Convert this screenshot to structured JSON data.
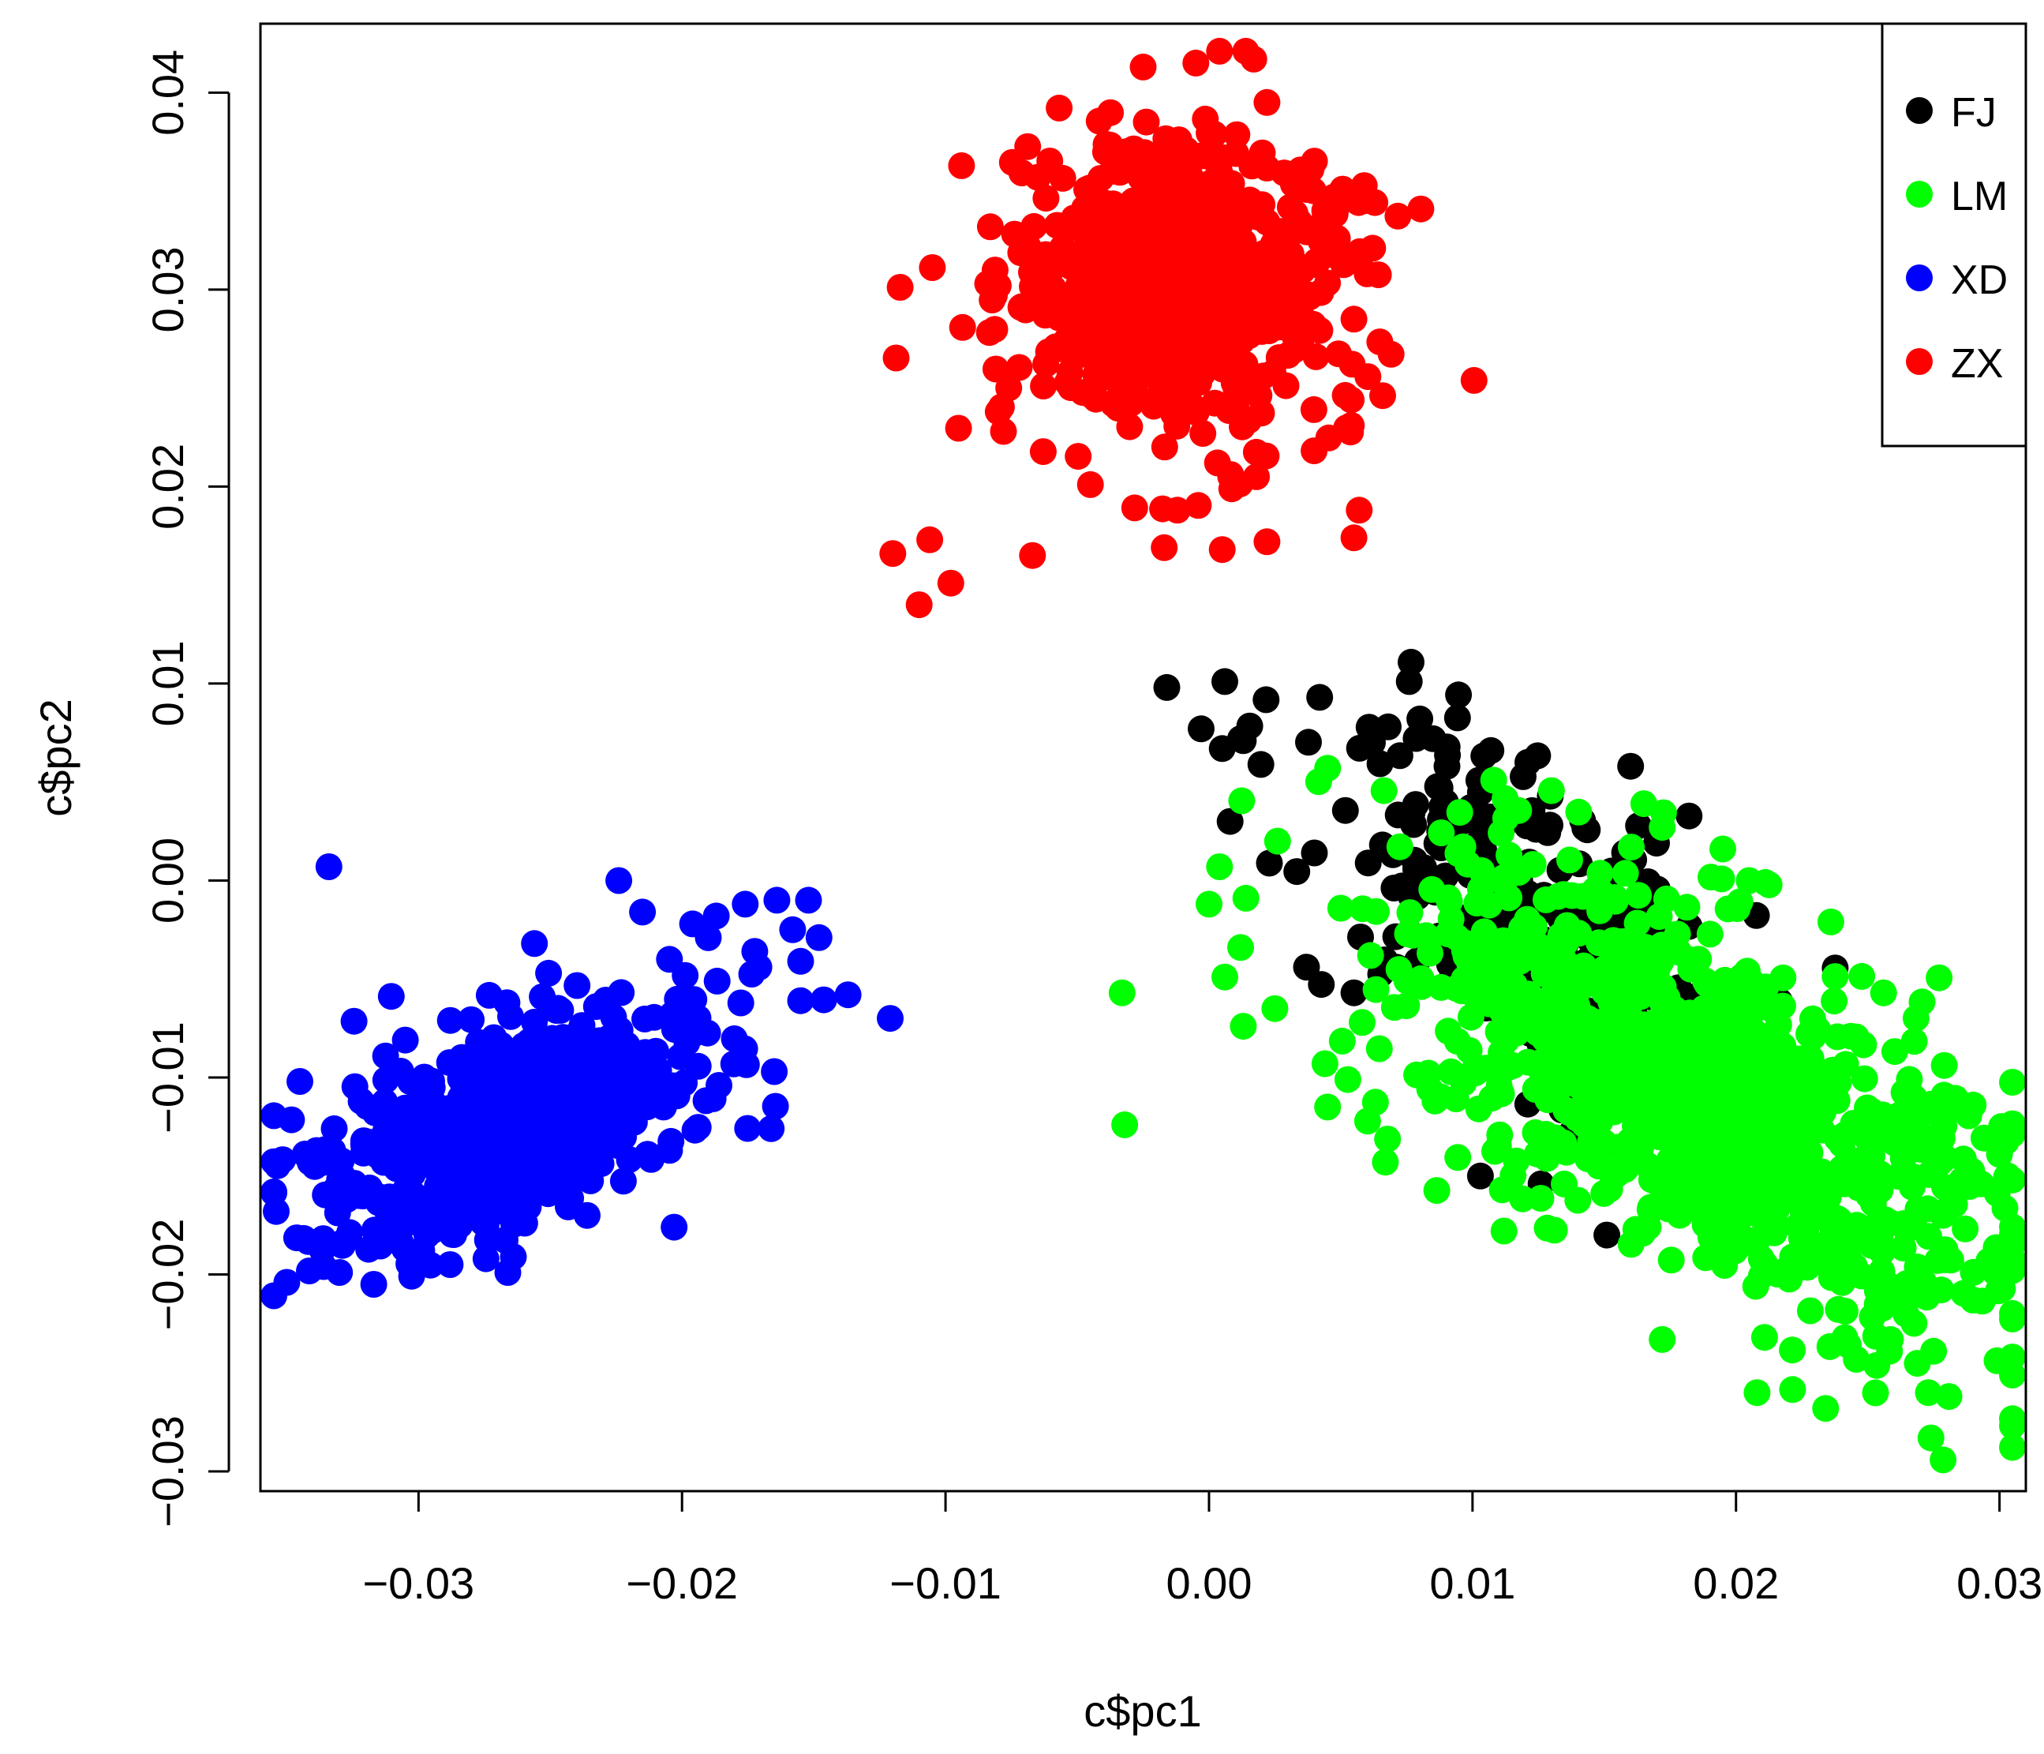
{
  "chart_data": {
    "type": "scatter",
    "title": "",
    "xlabel": "c$pc1",
    "ylabel": "c$pc2",
    "xlim": [
      -0.036,
      0.031
    ],
    "ylim": [
      -0.031,
      0.0435
    ],
    "x_ticks": [
      -0.03,
      -0.02,
      -0.01,
      0.0,
      0.01,
      0.02,
      0.03
    ],
    "x_tick_labels": [
      "−0.03",
      "−0.02",
      "−0.01",
      "0.00",
      "0.01",
      "0.02",
      "0.03"
    ],
    "y_ticks": [
      -0.03,
      -0.02,
      -0.01,
      0.0,
      0.01,
      0.02,
      0.03,
      0.04
    ],
    "y_tick_labels": [
      "−0.03",
      "−0.02",
      "−0.01",
      "0.00",
      "0.01",
      "0.02",
      "0.03",
      "0.04"
    ],
    "grid": false,
    "legend_position": "top-right",
    "series": [
      {
        "name": "FJ",
        "color": "#000000",
        "clusters": [
          {
            "center": [
              0.012,
              -0.002
            ],
            "sd": [
              0.004,
              0.0045
            ],
            "corr": -0.55,
            "n": 260
          }
        ],
        "points": [
          [
            -0.0016,
            0.0098
          ],
          [
            0.0006,
            0.0101
          ],
          [
            -0.0003,
            0.0077
          ],
          [
            0.0005,
            0.0067
          ],
          [
            0.0012,
            0.0072
          ],
          [
            0.0013,
            0.0071
          ],
          [
            0.0042,
            0.0093
          ],
          [
            0.0076,
            0.0101
          ],
          [
            0.008,
            0.0082
          ],
          [
            0.0085,
            0.0072
          ],
          [
            0.0068,
            0.0078
          ],
          [
            0.0062,
            0.007
          ],
          [
            0.0107,
            0.0066
          ],
          [
            0.0121,
            0.006
          ],
          [
            0.016,
            0.0058
          ],
          [
            0.0008,
            0.003
          ],
          [
            0.0103,
            -0.015
          ],
          [
            0.0126,
            -0.0154
          ],
          [
            0.0151,
            -0.018
          ],
          [
            0.0055,
            -0.0057
          ],
          [
            0.0037,
            -0.0044
          ],
          [
            0.004,
            0.0014
          ]
        ]
      },
      {
        "name": "LM",
        "color": "#00ff00",
        "clusters": [
          {
            "center": [
              0.0185,
              -0.011
            ],
            "sd": [
              0.0055,
              0.0055
            ],
            "corr": -0.6,
            "n": 1100
          }
        ],
        "points": [
          [
            -0.0033,
            -0.0057
          ],
          [
            -0.0032,
            -0.0124
          ],
          [
            0.0026,
            0.002
          ],
          [
            0.0004,
            0.0007
          ],
          [
            0.0,
            -0.0012
          ],
          [
            0.0014,
            -0.0009
          ],
          [
            0.0012,
            -0.0034
          ],
          [
            0.0006,
            -0.0049
          ],
          [
            0.0013,
            -0.0074
          ],
          [
            0.0025,
            -0.0065
          ],
          [
            0.0044,
            -0.0093
          ],
          [
            0.0045,
            -0.0115
          ],
          [
            0.0045,
            0.0057
          ],
          [
            0.0165,
            0.0039
          ],
          [
            0.0172,
            0.0027
          ],
          [
            0.0195,
            0.0016
          ],
          [
            0.0205,
            0.0
          ],
          [
            0.0236,
            -0.0021
          ],
          [
            0.0256,
            -0.0057
          ],
          [
            0.029,
            -0.0114
          ],
          [
            0.03,
            -0.0139
          ],
          [
            0.0293,
            -0.0154
          ],
          [
            0.0305,
            -0.0198
          ],
          [
            0.029,
            -0.0213
          ],
          [
            0.0275,
            -0.0239
          ],
          [
            0.0273,
            -0.026
          ],
          [
            0.0274,
            -0.0283
          ],
          [
            0.0208,
            -0.026
          ],
          [
            0.0234,
            -0.0268
          ],
          [
            0.0172,
            -0.0233
          ],
          [
            0.0118,
            -0.0041
          ]
        ]
      },
      {
        "name": "XD",
        "color": "#0000ff",
        "clusters": [
          {
            "center": [
              -0.0265,
              -0.0125
            ],
            "sd": [
              0.0038,
              0.0032
            ],
            "corr": 0.6,
            "n": 650
          }
        ],
        "points": [
          [
            -0.0334,
            0.0007
          ],
          [
            -0.0224,
            0.0
          ],
          [
            -0.0215,
            -0.0016
          ],
          [
            -0.0196,
            -0.0022
          ],
          [
            -0.0187,
            -0.0018
          ],
          [
            -0.0176,
            -0.0012
          ],
          [
            -0.0164,
            -0.001
          ],
          [
            -0.0152,
            -0.001
          ],
          [
            -0.0148,
            -0.0029
          ],
          [
            -0.0158,
            -0.0025
          ],
          [
            -0.0155,
            -0.0041
          ],
          [
            -0.0155,
            -0.0061
          ],
          [
            -0.0137,
            -0.0058
          ],
          [
            -0.0121,
            -0.007
          ],
          [
            -0.0165,
            -0.0097
          ],
          [
            -0.0199,
            -0.0073
          ],
          [
            -0.0186,
            -0.0104
          ],
          [
            -0.0203,
            -0.0176
          ],
          [
            -0.0236,
            -0.017
          ],
          [
            -0.0264,
            -0.0191
          ],
          [
            -0.0288,
            -0.0195
          ],
          [
            -0.0302,
            -0.019
          ],
          [
            -0.0317,
            -0.0205
          ],
          [
            -0.033,
            -0.0199
          ],
          [
            -0.0336,
            -0.0196
          ],
          [
            -0.035,
            -0.0204
          ],
          [
            -0.0354,
            -0.0168
          ],
          [
            -0.0332,
            -0.0126
          ],
          [
            -0.033,
            -0.0152
          ],
          [
            -0.0305,
            -0.0081
          ],
          [
            -0.0256,
            -0.0032
          ]
        ]
      },
      {
        "name": "ZX",
        "color": "#ff0000",
        "clusters": [
          {
            "center": [
              -0.0008,
              0.03
            ],
            "sd": [
              0.0032,
              0.0036
            ],
            "corr": 0.0,
            "n": 650
          }
        ],
        "points": [
          [
            -0.012,
            0.0166
          ],
          [
            -0.011,
            0.014
          ],
          [
            -0.0106,
            0.0173
          ],
          [
            -0.0098,
            0.0151
          ],
          [
            -0.0067,
            0.0165
          ],
          [
            -0.0045,
            0.0201
          ],
          [
            -0.008,
            0.0238
          ],
          [
            -0.0076,
            0.025
          ],
          [
            -0.0078,
            0.0228
          ],
          [
            -0.0084,
            0.0303
          ],
          [
            -0.008,
            0.0302
          ],
          [
            -0.0065,
            0.0357
          ],
          [
            -0.0025,
            0.0413
          ],
          [
            -0.0005,
            0.0415
          ],
          [
            0.0004,
            0.0421
          ],
          [
            0.0017,
            0.0417
          ],
          [
            0.0022,
            0.0395
          ],
          [
            0.0048,
            0.034
          ],
          [
            0.006,
            0.0308
          ],
          [
            0.0055,
            0.0285
          ],
          [
            0.0054,
            0.0231
          ],
          [
            0.0057,
            0.0188
          ],
          [
            0.0055,
            0.0174
          ],
          [
            0.0022,
            0.0172
          ],
          [
            0.0005,
            0.0168
          ],
          [
            -0.0017,
            0.0169
          ],
          [
            -0.0012,
            0.0188
          ],
          [
            0.0018,
            0.0205
          ]
        ]
      }
    ]
  }
}
